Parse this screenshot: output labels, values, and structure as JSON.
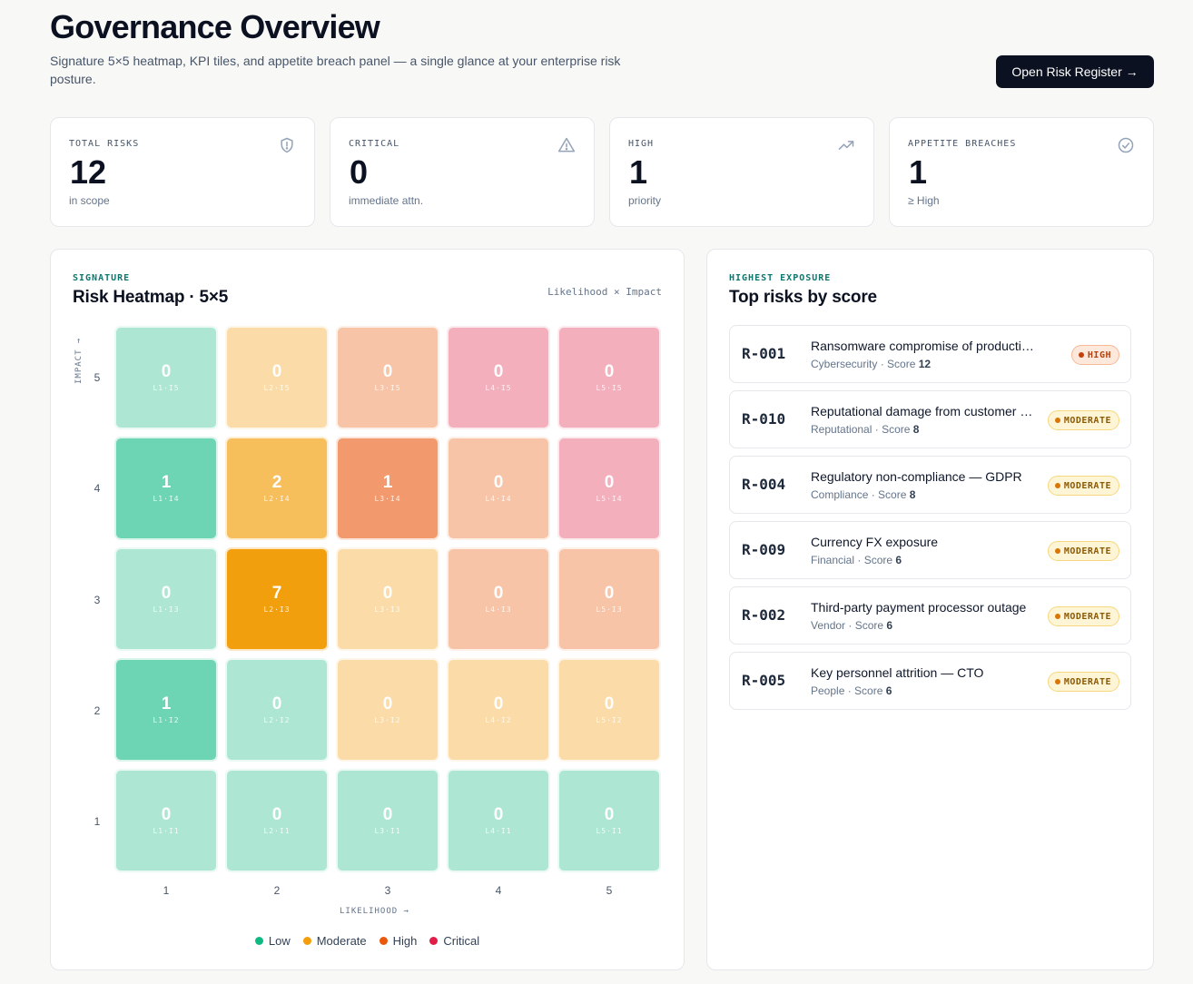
{
  "header": {
    "title": "Governance Overview",
    "subtitle": "Signature 5×5 heatmap, KPI tiles, and appetite breach panel — a single glance at your enterprise risk posture.",
    "cta_label": "Open Risk Register →"
  },
  "kpis": [
    {
      "label": "TOTAL RISKS",
      "value": "12",
      "note": "in scope",
      "icon": "shield-icon"
    },
    {
      "label": "CRITICAL",
      "value": "0",
      "note": "immediate attn.",
      "icon": "warning-triangle-icon"
    },
    {
      "label": "HIGH",
      "value": "1",
      "note": "priority",
      "icon": "trending-up-icon"
    },
    {
      "label": "APPETITE BREACHES",
      "value": "1",
      "note": "≥ High",
      "icon": "check-circle-icon"
    }
  ],
  "heatmap": {
    "eyebrow": "SIGNATURE",
    "title": "Risk Heatmap · 5×5",
    "hint": "Likelihood × Impact",
    "y_axis_title": "IMPACT →",
    "x_axis_title": "LIKELIHOOD →",
    "y_labels": [
      "5",
      "4",
      "3",
      "2",
      "1"
    ],
    "x_labels": [
      "1",
      "2",
      "3",
      "4",
      "5"
    ],
    "rows": [
      [
        {
          "count": "0",
          "code": "L1·I5"
        },
        {
          "count": "0",
          "code": "L2·I5"
        },
        {
          "count": "0",
          "code": "L3·I5"
        },
        {
          "count": "0",
          "code": "L4·I5"
        },
        {
          "count": "0",
          "code": "L5·I5"
        }
      ],
      [
        {
          "count": "1",
          "code": "L1·I4"
        },
        {
          "count": "2",
          "code": "L2·I4"
        },
        {
          "count": "1",
          "code": "L3·I4"
        },
        {
          "count": "0",
          "code": "L4·I4"
        },
        {
          "count": "0",
          "code": "L5·I4"
        }
      ],
      [
        {
          "count": "0",
          "code": "L1·I3"
        },
        {
          "count": "7",
          "code": "L2·I3"
        },
        {
          "count": "0",
          "code": "L3·I3"
        },
        {
          "count": "0",
          "code": "L4·I3"
        },
        {
          "count": "0",
          "code": "L5·I3"
        }
      ],
      [
        {
          "count": "1",
          "code": "L1·I2"
        },
        {
          "count": "0",
          "code": "L2·I2"
        },
        {
          "count": "0",
          "code": "L3·I2"
        },
        {
          "count": "0",
          "code": "L4·I2"
        },
        {
          "count": "0",
          "code": "L5·I2"
        }
      ],
      [
        {
          "count": "0",
          "code": "L1·I1"
        },
        {
          "count": "0",
          "code": "L2·I1"
        },
        {
          "count": "0",
          "code": "L3·I1"
        },
        {
          "count": "0",
          "code": "L4·I1"
        },
        {
          "count": "0",
          "code": "L5·I1"
        }
      ]
    ],
    "colors": {
      "low": "#6dd5b3",
      "low_faint": "#ade6d3",
      "moderate": "#f7be5c",
      "moderate_faint": "#fbdba7",
      "moderate_strong": "#f29f0e",
      "high": "#f29a6d",
      "high_faint": "#f7c4a8",
      "critical_faint": "#f3afbc"
    },
    "legend": [
      {
        "label": "Low",
        "color": "#10b981"
      },
      {
        "label": "Moderate",
        "color": "#f59e0b"
      },
      {
        "label": "High",
        "color": "#ea580c"
      },
      {
        "label": "Critical",
        "color": "#e11d48"
      }
    ]
  },
  "top_risks": {
    "eyebrow": "HIGHEST EXPOSURE",
    "title": "Top risks by score",
    "items": [
      {
        "id": "R-001",
        "name": "Ransomware compromise of production systems",
        "category": "Cybersecurity",
        "score_label": "Score",
        "score": "12",
        "level": "HIGH"
      },
      {
        "id": "R-010",
        "name": "Reputational damage from customer data incident",
        "category": "Reputational",
        "score_label": "Score",
        "score": "8",
        "level": "MODERATE"
      },
      {
        "id": "R-004",
        "name": "Regulatory non-compliance — GDPR",
        "category": "Compliance",
        "score_label": "Score",
        "score": "8",
        "level": "MODERATE"
      },
      {
        "id": "R-009",
        "name": "Currency FX exposure",
        "category": "Financial",
        "score_label": "Score",
        "score": "6",
        "level": "MODERATE"
      },
      {
        "id": "R-002",
        "name": "Third-party payment processor outage",
        "category": "Vendor",
        "score_label": "Score",
        "score": "6",
        "level": "MODERATE"
      },
      {
        "id": "R-005",
        "name": "Key personnel attrition — CTO",
        "category": "People",
        "score_label": "Score",
        "score": "6",
        "level": "MODERATE"
      }
    ]
  }
}
